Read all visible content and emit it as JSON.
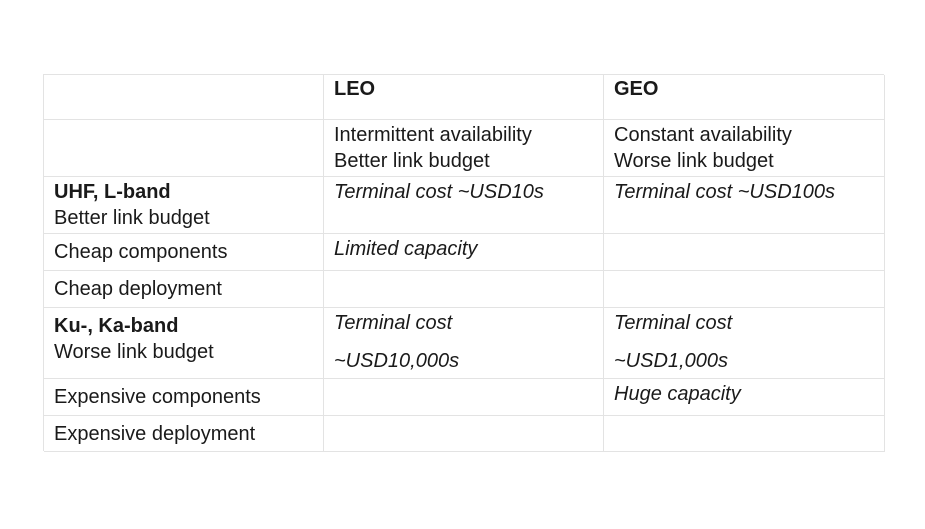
{
  "table": {
    "header": {
      "corner": "",
      "col1": "LEO",
      "col2": "GEO"
    },
    "row_availability": {
      "label": "",
      "leo": [
        "Intermittent availability",
        "Better link budget"
      ],
      "geo": [
        "Constant availability",
        "Worse link budget"
      ]
    },
    "row_uhf": {
      "label_bold": "UHF, L-band",
      "label_sub": "Better link budget",
      "leo": "Terminal cost ~USD10s",
      "geo": "Terminal cost ~USD100s"
    },
    "row_cheap_components": {
      "label": "Cheap components",
      "leo": "Limited capacity",
      "geo": ""
    },
    "row_cheap_deployment": {
      "label": "Cheap deployment",
      "leo": "",
      "geo": ""
    },
    "row_ku": {
      "label_bold": "Ku-, Ka-band",
      "label_sub": "Worse link budget",
      "leo": [
        "Terminal cost",
        "~USD10,000s"
      ],
      "geo": [
        "Terminal cost",
        "~USD1,000s"
      ]
    },
    "row_expensive_components": {
      "label": "Expensive components",
      "leo": "",
      "geo": "Huge capacity"
    },
    "row_expensive_deployment": {
      "label": "Expensive deployment",
      "leo": "",
      "geo": ""
    }
  }
}
